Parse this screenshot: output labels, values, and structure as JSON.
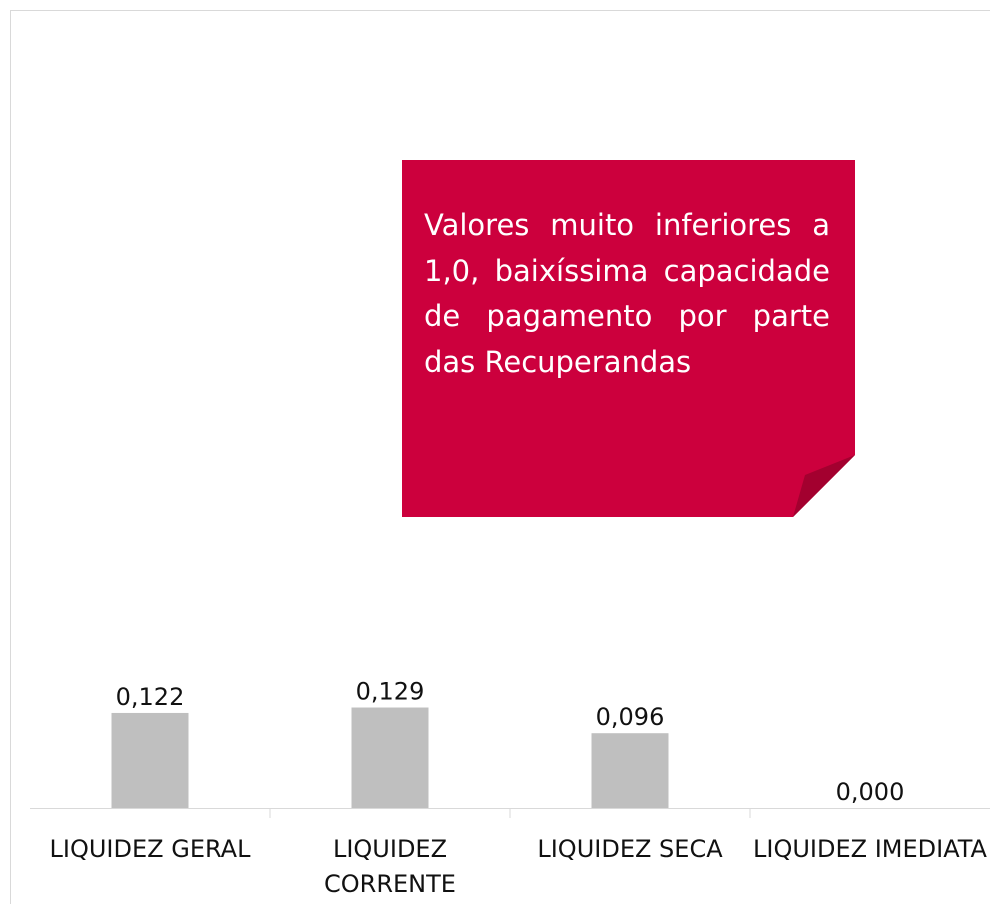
{
  "chart_data": {
    "type": "bar",
    "categories": [
      "LIQUIDEZ GERAL",
      "LIQUIDEZ CORRENTE",
      "LIQUIDEZ SECA",
      "LIQUIDEZ IMEDIATA"
    ],
    "values": [
      0.122,
      0.129,
      0.096,
      0.0
    ],
    "value_labels": [
      "0,122",
      "0,129",
      "0,096",
      "0,000"
    ],
    "color": "#bfbfbf",
    "ylim": [
      0,
      1
    ],
    "annotation": "Valores muito inferiores a 1,0, baixíssima capacidade de pagamento por parte das Recuperandas"
  }
}
